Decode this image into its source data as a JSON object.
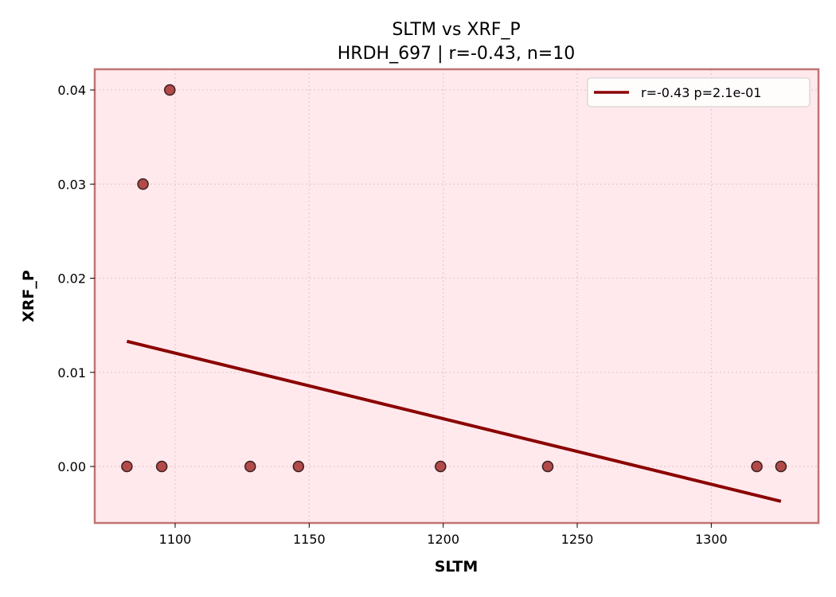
{
  "chart_data": {
    "type": "scatter",
    "title": "SLTM vs XRF_P",
    "subtitle": "HRDH_697 | r=-0.43, n=10",
    "xlabel": "SLTM",
    "ylabel": "XRF_P",
    "xlim": [
      1070,
      1340
    ],
    "ylim": [
      -0.006,
      0.0422
    ],
    "xticks": [
      1100,
      1150,
      1200,
      1250,
      1300
    ],
    "xtick_labels": [
      "1100",
      "1150",
      "1200",
      "1250",
      "1300"
    ],
    "yticks": [
      0.0,
      0.01,
      0.02,
      0.03,
      0.04
    ],
    "ytick_labels": [
      "0.00",
      "0.01",
      "0.02",
      "0.03",
      "0.04"
    ],
    "grid": true,
    "legend_position": "top-right",
    "points": [
      {
        "x": 1082,
        "y": 0.0
      },
      {
        "x": 1088,
        "y": 0.03
      },
      {
        "x": 1095,
        "y": 0.0
      },
      {
        "x": 1098,
        "y": 0.04
      },
      {
        "x": 1128,
        "y": 0.0
      },
      {
        "x": 1146,
        "y": 0.0
      },
      {
        "x": 1199,
        "y": 0.0
      },
      {
        "x": 1239,
        "y": 0.0
      },
      {
        "x": 1317,
        "y": 0.0
      },
      {
        "x": 1326,
        "y": 0.0
      }
    ],
    "fit_line": {
      "label": "r=-0.43  p=2.1e-01",
      "x": [
        1082,
        1326
      ],
      "y": [
        0.0133,
        -0.0037
      ]
    },
    "colors": {
      "plot_background": "#ffe9ec",
      "frame": "#c27474",
      "point_fill": "#b24a4a",
      "point_edge": "#3a1f1f",
      "fit_line": "#8b0000",
      "grid": "#e2c4c8"
    }
  }
}
